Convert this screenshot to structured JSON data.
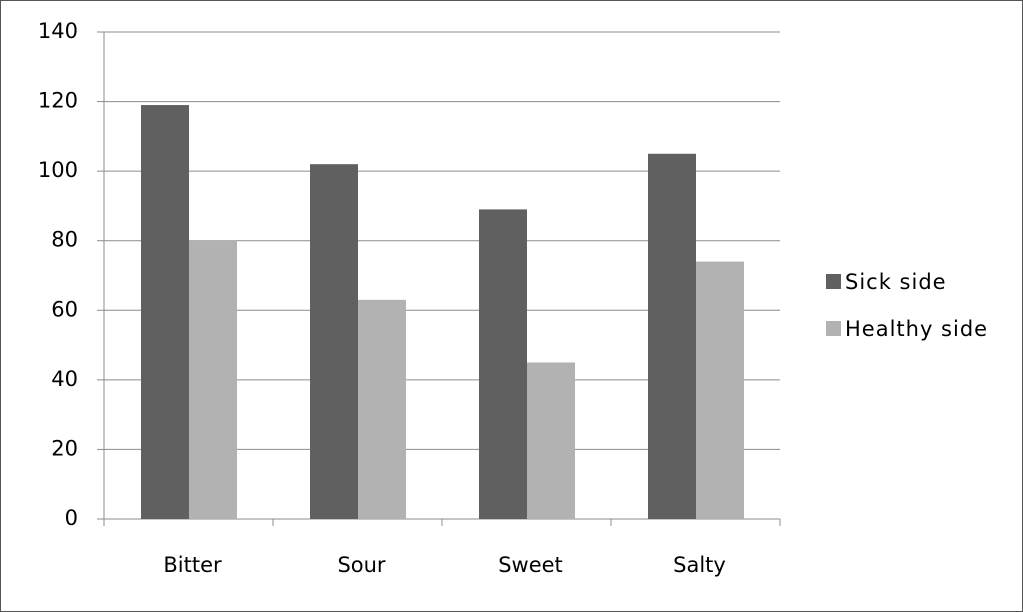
{
  "chart_data": {
    "type": "bar",
    "categories": [
      "Bitter",
      "Sour",
      "Sweet",
      "Salty"
    ],
    "series": [
      {
        "name": "Sick side",
        "color": "#606060",
        "values": [
          119,
          102,
          89,
          105
        ]
      },
      {
        "name": "Healthy side",
        "color": "#b2b2b2",
        "values": [
          80,
          63,
          45,
          74
        ]
      }
    ],
    "ylim": [
      0,
      140
    ],
    "yticks": [
      0,
      20,
      40,
      60,
      80,
      100,
      120,
      140
    ],
    "grid": true,
    "legend": "right"
  }
}
